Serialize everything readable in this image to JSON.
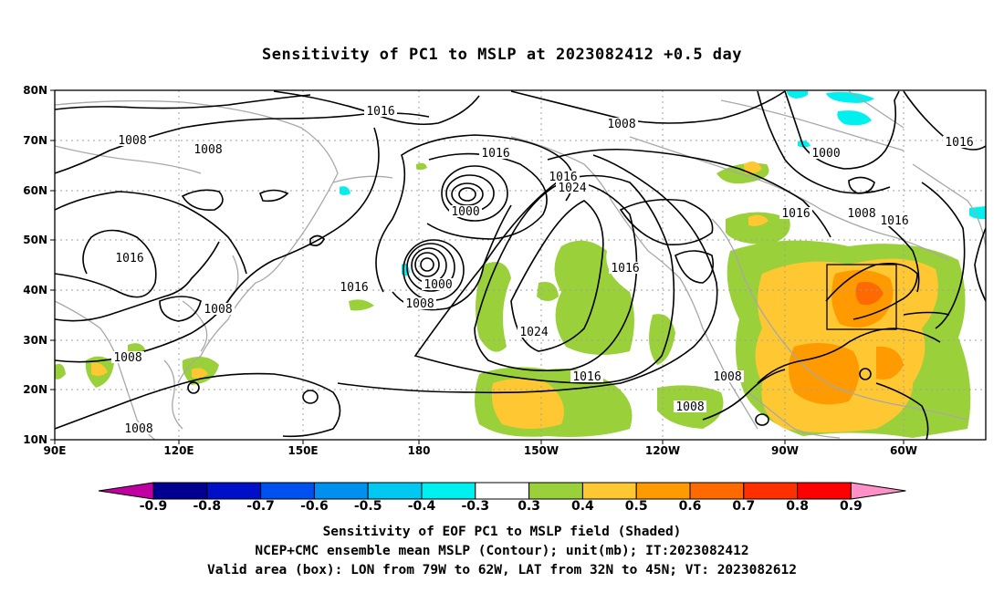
{
  "title": "Sensitivity of PC1 to MSLP at 2023082412 +0.5 day",
  "lat_labels": [
    "80N",
    "70N",
    "60N",
    "50N",
    "40N",
    "30N",
    "20N",
    "10N"
  ],
  "lon_labels": [
    "90E",
    "120E",
    "150E",
    "180",
    "150W",
    "120W",
    "90W",
    "60W"
  ],
  "contour_labels": [
    "1016",
    "1008",
    "1008",
    "1016",
    "1000",
    "1016",
    "1016",
    "1008",
    "1016",
    "1024",
    "1000",
    "1016",
    "1016",
    "1008",
    "1008",
    "1000",
    "1008",
    "1016",
    "1008",
    "1016",
    "1024",
    "1008",
    "1016",
    "1008",
    "1008"
  ],
  "colorbar": {
    "colors": [
      "#c000a0",
      "#000090",
      "#0010c8",
      "#0050f0",
      "#0090f0",
      "#00c8f0",
      "#00f0f0",
      "#ffffff",
      "#9ad03a",
      "#ffc832",
      "#ff9a00",
      "#ff6a00",
      "#ff3000",
      "#ff0000",
      "#ff90c8"
    ],
    "labels": [
      "-0.9",
      "-0.8",
      "-0.7",
      "-0.6",
      "-0.5",
      "-0.4",
      "-0.3",
      "0.3",
      "0.4",
      "0.5",
      "0.6",
      "0.7",
      "0.8",
      "0.9"
    ]
  },
  "captions": [
    "Sensitivity of EOF PC1 to MSLP field (Shaded)",
    "NCEP+CMC ensemble mean MSLP (Contour); unit(mb); IT:2023082412",
    "Valid area (box): LON from 79W to 62W, LAT from 32N to 45N; VT: 2023082612"
  ]
}
